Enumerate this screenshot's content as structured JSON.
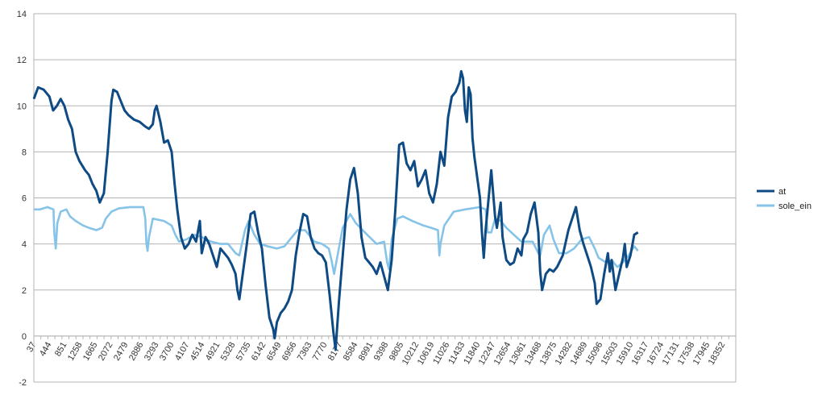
{
  "chart_data": {
    "type": "line",
    "title": "",
    "xlabel": "",
    "ylabel": "",
    "ylim": [
      -2,
      14
    ],
    "yticks": [
      -2,
      0,
      2,
      4,
      6,
      8,
      10,
      12,
      14
    ],
    "xlim": [
      37,
      18700
    ],
    "xticks": [
      37,
      444,
      851,
      1258,
      1665,
      2072,
      2479,
      2886,
      3293,
      3700,
      4107,
      4514,
      4921,
      5328,
      5735,
      6142,
      6549,
      6956,
      7363,
      7770,
      8177,
      8584,
      8991,
      9398,
      9805,
      10212,
      10619,
      11026,
      11433,
      11840,
      12247,
      12654,
      13061,
      13468,
      13875,
      14282,
      14689,
      15096,
      15503,
      15910,
      16317,
      16724,
      17131,
      17538,
      17945,
      18352
    ],
    "grid": true,
    "legend_position": "right",
    "series": [
      {
        "name": "at",
        "color": "#0e4a84",
        "points": [
          [
            37,
            10.3
          ],
          [
            150,
            10.8
          ],
          [
            300,
            10.7
          ],
          [
            450,
            10.4
          ],
          [
            550,
            9.8
          ],
          [
            650,
            10.0
          ],
          [
            750,
            10.3
          ],
          [
            850,
            10.0
          ],
          [
            950,
            9.4
          ],
          [
            1050,
            9.0
          ],
          [
            1150,
            8.0
          ],
          [
            1250,
            7.6
          ],
          [
            1400,
            7.2
          ],
          [
            1500,
            7.0
          ],
          [
            1600,
            6.6
          ],
          [
            1700,
            6.3
          ],
          [
            1790,
            5.8
          ],
          [
            1900,
            6.2
          ],
          [
            2000,
            8.0
          ],
          [
            2100,
            10.2
          ],
          [
            2150,
            10.7
          ],
          [
            2250,
            10.6
          ],
          [
            2350,
            10.2
          ],
          [
            2450,
            9.8
          ],
          [
            2550,
            9.6
          ],
          [
            2700,
            9.4
          ],
          [
            2850,
            9.3
          ],
          [
            3000,
            9.1
          ],
          [
            3100,
            9.0
          ],
          [
            3200,
            9.2
          ],
          [
            3250,
            9.8
          ],
          [
            3300,
            10.0
          ],
          [
            3400,
            9.3
          ],
          [
            3500,
            8.4
          ],
          [
            3600,
            8.5
          ],
          [
            3700,
            8.0
          ],
          [
            3780,
            6.6
          ],
          [
            3850,
            5.5
          ],
          [
            3950,
            4.3
          ],
          [
            4050,
            3.8
          ],
          [
            4150,
            4.0
          ],
          [
            4250,
            4.4
          ],
          [
            4350,
            4.1
          ],
          [
            4450,
            5.0
          ],
          [
            4500,
            3.6
          ],
          [
            4600,
            4.3
          ],
          [
            4700,
            4.0
          ],
          [
            4800,
            3.5
          ],
          [
            4900,
            3.0
          ],
          [
            5000,
            3.8
          ],
          [
            5100,
            3.6
          ],
          [
            5200,
            3.4
          ],
          [
            5300,
            3.1
          ],
          [
            5400,
            2.7
          ],
          [
            5450,
            2.0
          ],
          [
            5500,
            1.6
          ],
          [
            5600,
            2.8
          ],
          [
            5700,
            4.0
          ],
          [
            5800,
            5.3
          ],
          [
            5900,
            5.4
          ],
          [
            6000,
            4.5
          ],
          [
            6100,
            3.8
          ],
          [
            6200,
            2.2
          ],
          [
            6300,
            0.8
          ],
          [
            6400,
            0.3
          ],
          [
            6440,
            -0.1
          ],
          [
            6500,
            0.6
          ],
          [
            6600,
            1.0
          ],
          [
            6700,
            1.2
          ],
          [
            6800,
            1.5
          ],
          [
            6900,
            2.0
          ],
          [
            7000,
            3.5
          ],
          [
            7100,
            4.5
          ],
          [
            7200,
            5.3
          ],
          [
            7300,
            5.2
          ],
          [
            7400,
            4.3
          ],
          [
            7500,
            3.8
          ],
          [
            7600,
            3.6
          ],
          [
            7700,
            3.5
          ],
          [
            7800,
            3.2
          ],
          [
            7900,
            1.8
          ],
          [
            8000,
            0.2
          ],
          [
            8060,
            -0.6
          ],
          [
            8150,
            1.5
          ],
          [
            8250,
            3.5
          ],
          [
            8350,
            5.5
          ],
          [
            8450,
            6.8
          ],
          [
            8550,
            7.3
          ],
          [
            8650,
            6.2
          ],
          [
            8750,
            4.3
          ],
          [
            8850,
            3.4
          ],
          [
            8950,
            3.2
          ],
          [
            9050,
            3.0
          ],
          [
            9150,
            2.7
          ],
          [
            9250,
            3.2
          ],
          [
            9350,
            2.6
          ],
          [
            9450,
            2.0
          ],
          [
            9550,
            3.3
          ],
          [
            9650,
            5.5
          ],
          [
            9750,
            8.3
          ],
          [
            9850,
            8.4
          ],
          [
            9950,
            7.5
          ],
          [
            10050,
            7.2
          ],
          [
            10150,
            7.6
          ],
          [
            10250,
            6.5
          ],
          [
            10350,
            6.8
          ],
          [
            10450,
            7.2
          ],
          [
            10550,
            6.2
          ],
          [
            10650,
            5.8
          ],
          [
            10750,
            6.6
          ],
          [
            10850,
            8.0
          ],
          [
            10950,
            7.4
          ],
          [
            11050,
            9.5
          ],
          [
            11150,
            10.4
          ],
          [
            11250,
            10.6
          ],
          [
            11350,
            11.0
          ],
          [
            11400,
            11.5
          ],
          [
            11450,
            11.2
          ],
          [
            11500,
            9.8
          ],
          [
            11550,
            9.3
          ],
          [
            11600,
            10.8
          ],
          [
            11650,
            10.5
          ],
          [
            11700,
            8.6
          ],
          [
            11750,
            7.8
          ],
          [
            11850,
            6.6
          ],
          [
            11900,
            6.0
          ],
          [
            11950,
            4.5
          ],
          [
            12000,
            3.4
          ],
          [
            12050,
            4.6
          ],
          [
            12100,
            5.5
          ],
          [
            12200,
            7.2
          ],
          [
            12300,
            5.2
          ],
          [
            12350,
            4.7
          ],
          [
            12450,
            5.8
          ],
          [
            12500,
            4.3
          ],
          [
            12600,
            3.3
          ],
          [
            12700,
            3.1
          ],
          [
            12800,
            3.2
          ],
          [
            12900,
            3.8
          ],
          [
            13000,
            3.5
          ],
          [
            13050,
            4.2
          ],
          [
            13150,
            4.5
          ],
          [
            13250,
            5.3
          ],
          [
            13350,
            5.8
          ],
          [
            13450,
            4.5
          ],
          [
            13500,
            2.8
          ],
          [
            13550,
            2.0
          ],
          [
            13650,
            2.7
          ],
          [
            13750,
            2.9
          ],
          [
            13850,
            2.8
          ],
          [
            13950,
            3.0
          ],
          [
            14100,
            3.5
          ],
          [
            14250,
            4.6
          ],
          [
            14350,
            5.1
          ],
          [
            14450,
            5.6
          ],
          [
            14550,
            4.6
          ],
          [
            14650,
            4.0
          ],
          [
            14750,
            3.5
          ],
          [
            14850,
            3.0
          ],
          [
            14950,
            2.3
          ],
          [
            15000,
            1.4
          ],
          [
            15100,
            1.6
          ],
          [
            15200,
            2.7
          ],
          [
            15300,
            3.6
          ],
          [
            15350,
            2.8
          ],
          [
            15400,
            3.3
          ],
          [
            15500,
            2.0
          ],
          [
            15600,
            2.7
          ],
          [
            15700,
            3.4
          ],
          [
            15750,
            4.0
          ],
          [
            15800,
            3.0
          ],
          [
            15900,
            3.5
          ],
          [
            16000,
            4.4
          ],
          [
            16100,
            4.5
          ]
        ]
      },
      {
        "name": "sole_ein",
        "color": "#85c3e8",
        "points": [
          [
            37,
            5.5
          ],
          [
            200,
            5.5
          ],
          [
            400,
            5.6
          ],
          [
            560,
            5.5
          ],
          [
            580,
            4.5
          ],
          [
            620,
            3.8
          ],
          [
            660,
            4.9
          ],
          [
            750,
            5.4
          ],
          [
            900,
            5.5
          ],
          [
            1000,
            5.2
          ],
          [
            1150,
            5.0
          ],
          [
            1350,
            4.8
          ],
          [
            1500,
            4.7
          ],
          [
            1700,
            4.6
          ],
          [
            1850,
            4.7
          ],
          [
            1950,
            5.1
          ],
          [
            2100,
            5.4
          ],
          [
            2300,
            5.55
          ],
          [
            2600,
            5.6
          ],
          [
            2950,
            5.6
          ],
          [
            3000,
            5.1
          ],
          [
            3030,
            4.0
          ],
          [
            3060,
            3.7
          ],
          [
            3100,
            4.3
          ],
          [
            3200,
            5.1
          ],
          [
            3500,
            5.0
          ],
          [
            3700,
            4.8
          ],
          [
            3800,
            4.4
          ],
          [
            3900,
            4.1
          ],
          [
            4100,
            4.2
          ],
          [
            4300,
            4.4
          ],
          [
            4500,
            4.3
          ],
          [
            4750,
            4.1
          ],
          [
            5000,
            4.0
          ],
          [
            5200,
            4.0
          ],
          [
            5400,
            3.6
          ],
          [
            5500,
            3.5
          ],
          [
            5650,
            4.6
          ],
          [
            5750,
            5.0
          ],
          [
            5900,
            4.4
          ],
          [
            6050,
            4.0
          ],
          [
            6250,
            3.9
          ],
          [
            6500,
            3.8
          ],
          [
            6700,
            3.9
          ],
          [
            6900,
            4.3
          ],
          [
            7050,
            4.6
          ],
          [
            7250,
            4.6
          ],
          [
            7500,
            4.1
          ],
          [
            7700,
            4.0
          ],
          [
            7880,
            3.8
          ],
          [
            7950,
            3.3
          ],
          [
            8020,
            2.7
          ],
          [
            8100,
            3.4
          ],
          [
            8250,
            4.7
          ],
          [
            8450,
            5.3
          ],
          [
            8600,
            4.9
          ],
          [
            8900,
            4.4
          ],
          [
            9150,
            4.0
          ],
          [
            9350,
            4.1
          ],
          [
            9430,
            3.2
          ],
          [
            9480,
            2.9
          ],
          [
            9550,
            4.2
          ],
          [
            9700,
            5.1
          ],
          [
            9850,
            5.2
          ],
          [
            10100,
            5.0
          ],
          [
            10400,
            4.8
          ],
          [
            10600,
            4.7
          ],
          [
            10780,
            4.6
          ],
          [
            10820,
            3.5
          ],
          [
            10850,
            4.0
          ],
          [
            10950,
            4.8
          ],
          [
            11200,
            5.4
          ],
          [
            11500,
            5.5
          ],
          [
            11900,
            5.6
          ],
          [
            12050,
            5.5
          ],
          [
            12100,
            4.5
          ],
          [
            12200,
            4.5
          ],
          [
            12300,
            5.1
          ],
          [
            12450,
            5.0
          ],
          [
            12600,
            4.7
          ],
          [
            12800,
            4.4
          ],
          [
            13000,
            4.1
          ],
          [
            13300,
            4.1
          ],
          [
            13450,
            3.6
          ],
          [
            13500,
            3.5
          ],
          [
            13600,
            4.4
          ],
          [
            13750,
            4.8
          ],
          [
            13850,
            4.2
          ],
          [
            14000,
            3.6
          ],
          [
            14200,
            3.6
          ],
          [
            14400,
            3.8
          ],
          [
            14600,
            4.2
          ],
          [
            14800,
            4.3
          ],
          [
            14950,
            3.8
          ],
          [
            15050,
            3.4
          ],
          [
            15250,
            3.2
          ],
          [
            15400,
            3.3
          ],
          [
            15550,
            3.0
          ],
          [
            15700,
            3.2
          ],
          [
            15850,
            3.5
          ],
          [
            16000,
            3.9
          ],
          [
            16100,
            3.7
          ]
        ]
      }
    ]
  }
}
